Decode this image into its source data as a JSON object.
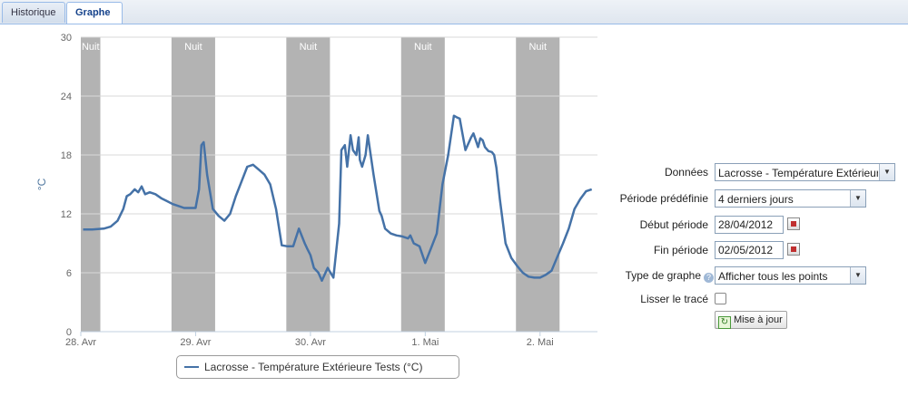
{
  "tabs": [
    {
      "label": "Historique",
      "active": false
    },
    {
      "label": "Graphe",
      "active": true
    }
  ],
  "form": {
    "donnees": {
      "label": "Données",
      "value": "Lacrosse - Température Extérieure"
    },
    "periode_predefinie": {
      "label": "Période prédéfinie",
      "value": "4 derniers jours"
    },
    "debut_periode": {
      "label": "Début période",
      "value": "28/04/2012"
    },
    "fin_periode": {
      "label": "Fin période",
      "value": "02/05/2012"
    },
    "type_graphe": {
      "label": "Type de graphe",
      "value": "Afficher tous les points",
      "help_icon": "help-icon"
    },
    "lisser": {
      "label": "Lisser le tracé",
      "checked": false
    },
    "update_button": {
      "label": "Mise à jour",
      "icon": "refresh-icon"
    }
  },
  "chart_data": {
    "type": "line",
    "ylabel": "°C",
    "ylim": [
      0,
      30
    ],
    "yticks": [
      0,
      6,
      12,
      18,
      24,
      30
    ],
    "xlim": [
      0,
      4.5
    ],
    "xticks": [
      {
        "x": 0,
        "label": "28. Avr"
      },
      {
        "x": 1,
        "label": "29. Avr"
      },
      {
        "x": 2,
        "label": "30. Avr"
      },
      {
        "x": 3,
        "label": "1. Mai"
      },
      {
        "x": 4,
        "label": "2. Mai"
      }
    ],
    "night_bands": [
      {
        "from": 0,
        "to": 0.17,
        "label": "Nuit"
      },
      {
        "from": 0.79,
        "to": 1.17,
        "label": "Nuit"
      },
      {
        "from": 1.79,
        "to": 2.17,
        "label": "Nuit"
      },
      {
        "from": 2.79,
        "to": 3.17,
        "label": "Nuit"
      },
      {
        "from": 3.79,
        "to": 4.17,
        "label": "Nuit"
      }
    ],
    "grid": true,
    "legend": "bottom",
    "colors": {
      "series": "#4572a7",
      "night": "#b3b3b3",
      "grid": "#d8d8d8"
    },
    "series": [
      {
        "name": "Lacrosse - Température Extérieure Tests (°C)",
        "x": [
          0.02,
          0.1,
          0.2,
          0.26,
          0.32,
          0.37,
          0.4,
          0.43,
          0.47,
          0.5,
          0.53,
          0.56,
          0.6,
          0.65,
          0.7,
          0.75,
          0.8,
          0.85,
          0.9,
          0.95,
          1.0,
          1.03,
          1.05,
          1.07,
          1.1,
          1.15,
          1.2,
          1.25,
          1.3,
          1.35,
          1.4,
          1.45,
          1.5,
          1.55,
          1.6,
          1.65,
          1.7,
          1.75,
          1.8,
          1.85,
          1.9,
          1.95,
          1.97,
          2.0,
          2.03,
          2.07,
          2.1,
          2.15,
          2.2,
          2.25,
          2.27,
          2.3,
          2.32,
          2.35,
          2.37,
          2.4,
          2.42,
          2.43,
          2.45,
          2.48,
          2.5,
          2.55,
          2.6,
          2.62,
          2.65,
          2.7,
          2.75,
          2.8,
          2.85,
          2.87,
          2.9,
          2.95,
          3.0,
          3.05,
          3.1,
          3.15,
          3.2,
          3.25,
          3.28,
          3.3,
          3.35,
          3.4,
          3.42,
          3.44,
          3.46,
          3.48,
          3.5,
          3.52,
          3.55,
          3.58,
          3.6,
          3.62,
          3.65,
          3.7,
          3.75,
          3.8,
          3.85,
          3.9,
          3.95,
          4.0,
          4.05,
          4.1,
          4.15,
          4.2,
          4.25,
          4.3,
          4.35,
          4.4,
          4.45
        ],
        "y": [
          10.4,
          10.4,
          10.5,
          10.7,
          11.3,
          12.5,
          13.8,
          14.0,
          14.5,
          14.2,
          14.8,
          14.0,
          14.2,
          14.0,
          13.6,
          13.3,
          13.0,
          12.8,
          12.6,
          12.6,
          12.6,
          14.5,
          19.0,
          19.3,
          16.0,
          12.5,
          11.8,
          11.3,
          12.0,
          13.8,
          15.3,
          16.8,
          17.0,
          16.5,
          16.0,
          15.0,
          12.5,
          8.8,
          8.7,
          8.7,
          10.5,
          9.0,
          8.5,
          7.8,
          6.5,
          6.0,
          5.2,
          6.5,
          5.5,
          11.0,
          18.5,
          19.0,
          16.8,
          20.0,
          18.5,
          18.0,
          19.8,
          17.5,
          16.8,
          18.0,
          20.0,
          16.0,
          12.3,
          11.8,
          10.5,
          10.0,
          9.8,
          9.7,
          9.5,
          9.8,
          9.0,
          8.7,
          7.0,
          8.5,
          10.0,
          15.0,
          18.0,
          22.0,
          21.8,
          21.7,
          18.5,
          19.8,
          20.2,
          19.5,
          18.8,
          19.7,
          19.5,
          18.8,
          18.4,
          18.3,
          18.0,
          16.7,
          13.5,
          9.0,
          7.5,
          6.7,
          6.0,
          5.6,
          5.5,
          5.5,
          5.8,
          6.2,
          7.6,
          9.0,
          10.5,
          12.5,
          13.5,
          14.3,
          14.5
        ]
      }
    ]
  }
}
